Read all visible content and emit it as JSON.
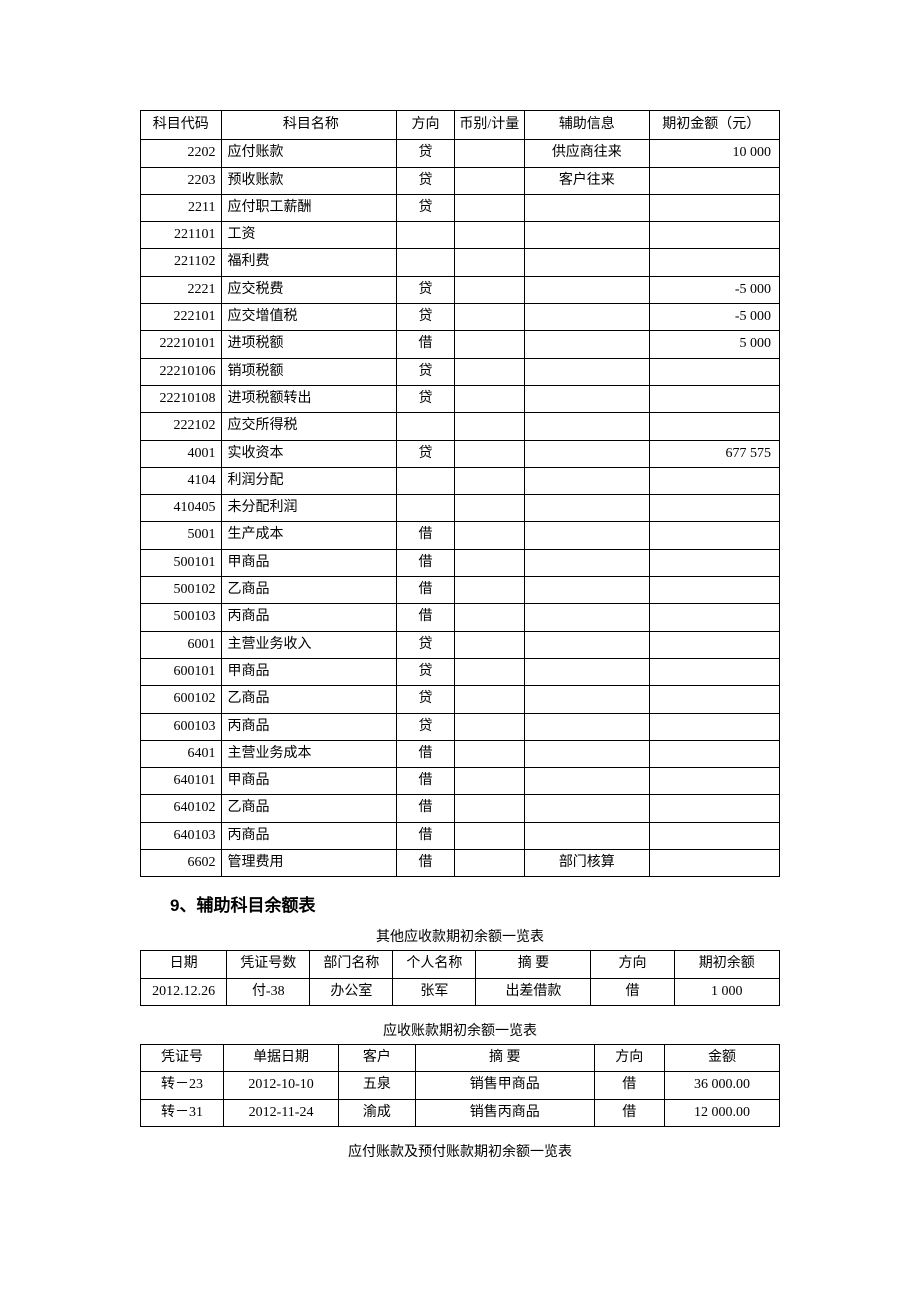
{
  "table1": {
    "columns": [
      "科目代码",
      "科目名称",
      "方向",
      "币别/计量",
      "辅助信息",
      "期初金额（元）"
    ],
    "rows": [
      [
        "2202",
        "应付账款",
        "贷",
        "",
        "供应商往来",
        "10 000"
      ],
      [
        "2203",
        "预收账款",
        "贷",
        "",
        "客户往来",
        ""
      ],
      [
        "2211",
        "应付职工薪酬",
        "贷",
        "",
        "",
        ""
      ],
      [
        "221101",
        "工资",
        "",
        "",
        "",
        ""
      ],
      [
        "221102",
        "福利费",
        "",
        "",
        "",
        ""
      ],
      [
        "2221",
        "应交税费",
        "贷",
        "",
        "",
        "-5 000"
      ],
      [
        "222101",
        "应交增值税",
        "贷",
        "",
        "",
        "-5 000"
      ],
      [
        "22210101",
        "进项税额",
        "借",
        "",
        "",
        "5 000"
      ],
      [
        "22210106",
        "销项税额",
        "贷",
        "",
        "",
        ""
      ],
      [
        "22210108",
        "进项税额转出",
        "贷",
        "",
        "",
        ""
      ],
      [
        "222102",
        "应交所得税",
        "",
        "",
        "",
        ""
      ],
      [
        "4001",
        "实收资本",
        "贷",
        "",
        "",
        "677 575"
      ],
      [
        "4104",
        "利润分配",
        "",
        "",
        "",
        ""
      ],
      [
        "410405",
        "未分配利润",
        "",
        "",
        "",
        ""
      ],
      [
        "5001",
        "生产成本",
        "借",
        "",
        "",
        ""
      ],
      [
        "500101",
        "甲商品",
        "借",
        "",
        "",
        ""
      ],
      [
        "500102",
        "乙商品",
        "借",
        "",
        "",
        ""
      ],
      [
        "500103",
        "丙商品",
        "借",
        "",
        "",
        ""
      ],
      [
        "6001",
        "主营业务收入",
        "贷",
        "",
        "",
        ""
      ],
      [
        "600101",
        "甲商品",
        "贷",
        "",
        "",
        ""
      ],
      [
        "600102",
        "乙商品",
        "贷",
        "",
        "",
        ""
      ],
      [
        "600103",
        "丙商品",
        "贷",
        "",
        "",
        ""
      ],
      [
        "6401",
        "主营业务成本",
        "借",
        "",
        "",
        ""
      ],
      [
        "640101",
        "甲商品",
        "借",
        "",
        "",
        ""
      ],
      [
        "640102",
        "乙商品",
        "借",
        "",
        "",
        ""
      ],
      [
        "640103",
        "丙商品",
        "借",
        "",
        "",
        ""
      ],
      [
        "6602",
        "管理费用",
        "借",
        "",
        "部门核算",
        ""
      ]
    ]
  },
  "heading": "9、辅助科目余额表",
  "table2": {
    "caption": "其他应收款期初余额一览表",
    "columns": [
      "日期",
      "凭证号数",
      "部门名称",
      "个人名称",
      "摘 要",
      "方向",
      "期初余额"
    ],
    "rows": [
      [
        "2012.12.26",
        "付-38",
        "办公室",
        "张军",
        "出差借款",
        "借",
        "1 000"
      ]
    ]
  },
  "table3": {
    "caption": "应收账款期初余额一览表",
    "columns": [
      "凭证号",
      "单据日期",
      "客户",
      "摘 要",
      "方向",
      "金额"
    ],
    "rows": [
      [
        "转－23",
        "2012-10-10",
        "五泉",
        "销售甲商品",
        "借",
        "36 000.00"
      ],
      [
        "转－31",
        "2012-11-24",
        "渝成",
        "销售丙商品",
        "借",
        "12 000.00"
      ]
    ]
  },
  "caption4": "应付账款及预付账款期初余额一览表"
}
